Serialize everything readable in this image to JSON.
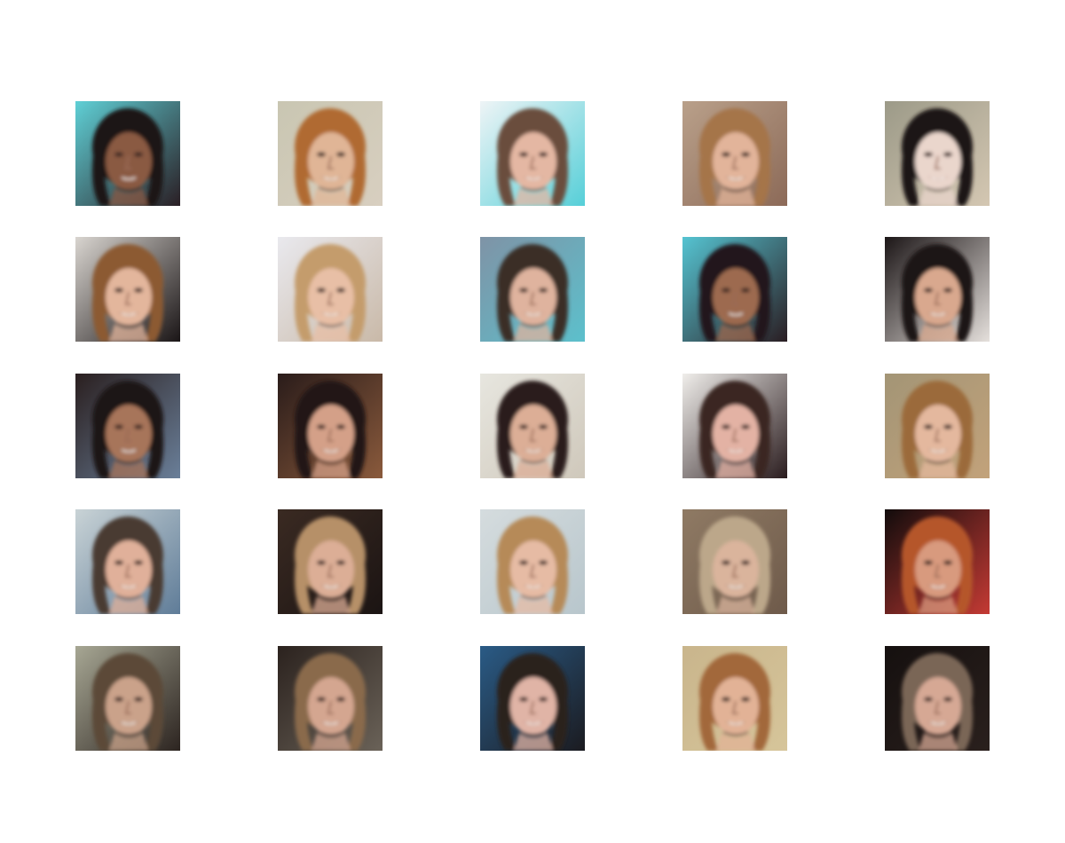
{
  "figure": {
    "rows": 5,
    "columns": 5,
    "samples": [
      {
        "bg": [
          "#5fd0d6",
          "#2a1e24"
        ],
        "hair": "#1f1614",
        "skin": "#8a5a43",
        "mouth": "#9b2f2f"
      },
      {
        "bg": [
          "#c9c6b2",
          "#d8cfc0"
        ],
        "hair": "#b06a30",
        "skin": "#e0b596",
        "mouth": "#5a2b25"
      },
      {
        "bg": [
          "#eef4f6",
          "#56cfd8"
        ],
        "hair": "#6b4d3c",
        "skin": "#e4b7a3",
        "mouth": "#6a2c2a"
      },
      {
        "bg": [
          "#b9a08a",
          "#8c6a58"
        ],
        "hair": "#a57448",
        "skin": "#e2b49a",
        "mouth": "#3a1e1c"
      },
      {
        "bg": [
          "#9c9a88",
          "#d4c7b2"
        ],
        "hair": "#1c1614",
        "skin": "#ead6cc",
        "mouth": "#7b2224"
      },
      {
        "bg": [
          "#d9d5d0",
          "#1a1516"
        ],
        "hair": "#8c5a32",
        "skin": "#e3b69c",
        "mouth": "#4a1f1c"
      },
      {
        "bg": [
          "#e9e9ee",
          "#c9b9a8"
        ],
        "hair": "#c49c6c",
        "skin": "#e8bfa6",
        "mouth": "#5a2c26"
      },
      {
        "bg": [
          "#7f93a6",
          "#5cc0cc"
        ],
        "hair": "#3a2d26",
        "skin": "#dfb39e",
        "mouth": "#5a2c26"
      },
      {
        "bg": [
          "#55c4d2",
          "#2a1d22"
        ],
        "hair": "#22181a",
        "skin": "#9d6a4f",
        "mouth": "#5a2226"
      },
      {
        "bg": [
          "#1c1617",
          "#e5e0dc"
        ],
        "hair": "#1c1414",
        "skin": "#d9a88e",
        "mouth": "#4a1f1c"
      },
      {
        "bg": [
          "#2a1f1f",
          "#6a7f99"
        ],
        "hair": "#1a1212",
        "skin": "#a7745a",
        "mouth": "#3c1c1a"
      },
      {
        "bg": [
          "#2a1c1a",
          "#8a5a3c"
        ],
        "hair": "#241814",
        "skin": "#d4a088",
        "mouth": "#3c1c1a"
      },
      {
        "bg": [
          "#e7e6df",
          "#cfc8bb"
        ],
        "hair": "#2a1e1a",
        "skin": "#dcae96",
        "mouth": "#5a2c26"
      },
      {
        "bg": [
          "#f0eeeb",
          "#2a1c1e"
        ],
        "hair": "#3a2624",
        "skin": "#e3b2a4",
        "mouth": "#6a2a2a"
      },
      {
        "bg": [
          "#a39576",
          "#c2a27a"
        ],
        "hair": "#9b6a3a",
        "skin": "#e4b89e",
        "mouth": "#4a1f1c"
      },
      {
        "bg": [
          "#c9d3d6",
          "#5f7c98"
        ],
        "hair": "#4a3a30",
        "skin": "#e0b09a",
        "mouth": "#5a2c26"
      },
      {
        "bg": [
          "#3a2a22",
          "#1b1413"
        ],
        "hair": "#b69068",
        "skin": "#dcae96",
        "mouth": "#4a1f1c"
      },
      {
        "bg": [
          "#d5dcde",
          "#b8c6cc"
        ],
        "hair": "#b68a58",
        "skin": "#e6bba4",
        "mouth": "#5a2c26"
      },
      {
        "bg": [
          "#8f7a64",
          "#6e5a4a"
        ],
        "hair": "#bca78a",
        "skin": "#dab49c",
        "mouth": "#3a1e1c"
      },
      {
        "bg": [
          "#120c0c",
          "#c43a34"
        ],
        "hair": "#b5562c",
        "skin": "#d89a7e",
        "mouth": "#3a1e1c"
      },
      {
        "bg": [
          "#a7a794",
          "#2c2420"
        ],
        "hair": "#5c4a38",
        "skin": "#caa28a",
        "mouth": "#3a1e1c"
      },
      {
        "bg": [
          "#2b221e",
          "#6a6258"
        ],
        "hair": "#8a6a4c",
        "skin": "#d4a690",
        "mouth": "#5a2626"
      },
      {
        "bg": [
          "#2a5b86",
          "#1b1b20"
        ],
        "hair": "#2a201c",
        "skin": "#e0b4a6",
        "mouth": "#6a2c2c"
      },
      {
        "bg": [
          "#c9b58c",
          "#d6c59a"
        ],
        "hair": "#a2683a",
        "skin": "#e2b296",
        "mouth": "#4a1f1c"
      },
      {
        "bg": [
          "#15100f",
          "#2a201d"
        ],
        "hair": "#7a6656",
        "skin": "#d6a894",
        "mouth": "#4a1f1c"
      }
    ]
  }
}
